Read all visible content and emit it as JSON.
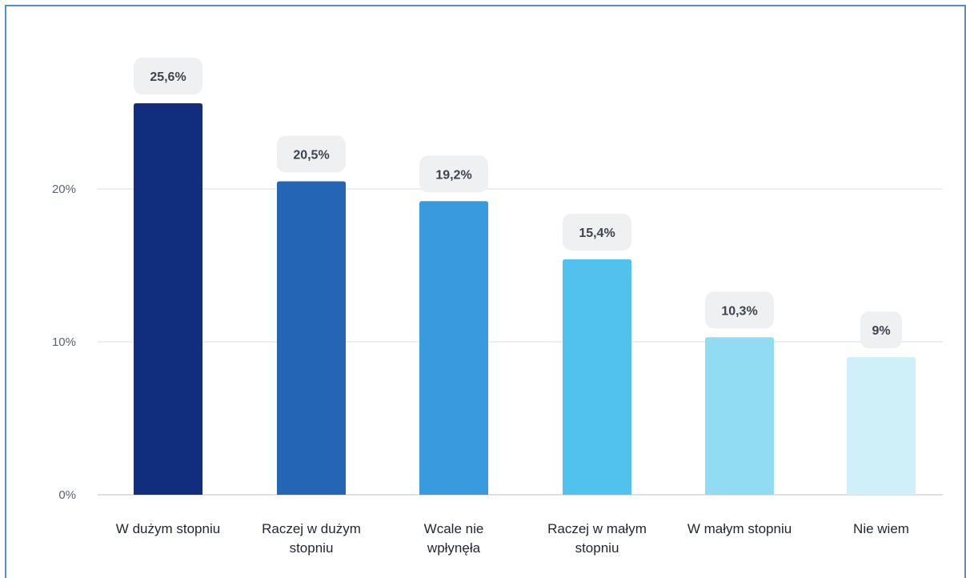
{
  "chart_data": {
    "type": "bar",
    "categories": [
      [
        "W dużym stopniu"
      ],
      [
        "Raczej w dużym",
        "stopniu"
      ],
      [
        "Wcale nie",
        "wpłynęła"
      ],
      [
        "Raczej w małym",
        "stopniu"
      ],
      [
        "W małym stopniu"
      ],
      [
        "Nie wiem"
      ]
    ],
    "values": [
      25.6,
      20.5,
      19.2,
      15.4,
      10.3,
      9
    ],
    "value_labels": [
      "25,6%",
      "20,5%",
      "19,2%",
      "15,4%",
      "10,3%",
      "9%"
    ],
    "colors": [
      "#112d7d",
      "#2465b6",
      "#3a9ade",
      "#51c2ee",
      "#92dcf3",
      "#cff0f9"
    ],
    "yticks": [
      0,
      10,
      20
    ],
    "ytick_labels": [
      "0%",
      "10%",
      "20%"
    ],
    "ylim": [
      0,
      26
    ],
    "grid": true,
    "title": "",
    "xlabel": "",
    "ylabel": ""
  },
  "style": {
    "border_color": "#4a92d2",
    "grid_color": "#e6e8ec",
    "pill_color": "#eff0f2"
  }
}
